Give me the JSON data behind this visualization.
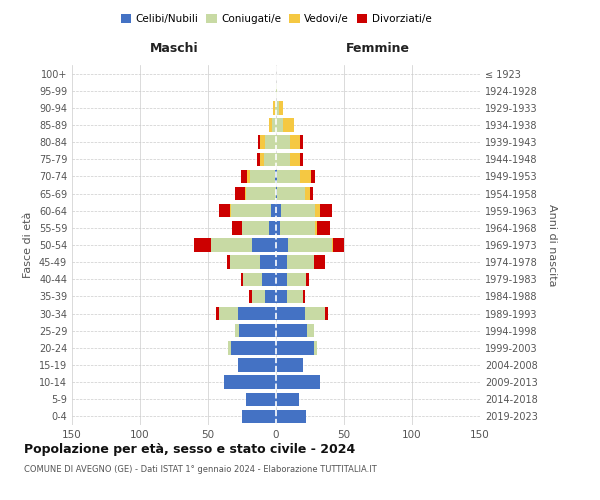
{
  "age_groups": [
    "0-4",
    "5-9",
    "10-14",
    "15-19",
    "20-24",
    "25-29",
    "30-34",
    "35-39",
    "40-44",
    "45-49",
    "50-54",
    "55-59",
    "60-64",
    "65-69",
    "70-74",
    "75-79",
    "80-84",
    "85-89",
    "90-94",
    "95-99",
    "100+"
  ],
  "birth_years": [
    "2019-2023",
    "2014-2018",
    "2009-2013",
    "2004-2008",
    "1999-2003",
    "1994-1998",
    "1989-1993",
    "1984-1988",
    "1979-1983",
    "1974-1978",
    "1969-1973",
    "1964-1968",
    "1959-1963",
    "1954-1958",
    "1949-1953",
    "1944-1948",
    "1939-1943",
    "1934-1938",
    "1929-1933",
    "1924-1928",
    "≤ 1923"
  ],
  "male": {
    "celibi": [
      25,
      22,
      38,
      28,
      33,
      27,
      28,
      8,
      10,
      12,
      18,
      5,
      4,
      0,
      1,
      0,
      0,
      0,
      0,
      0,
      0
    ],
    "coniugati": [
      0,
      0,
      0,
      0,
      2,
      3,
      14,
      10,
      14,
      22,
      30,
      20,
      29,
      22,
      18,
      9,
      8,
      3,
      1,
      0,
      0
    ],
    "vedovi": [
      0,
      0,
      0,
      0,
      0,
      0,
      0,
      0,
      0,
      0,
      0,
      0,
      1,
      1,
      2,
      3,
      4,
      2,
      1,
      0,
      0
    ],
    "divorziati": [
      0,
      0,
      0,
      0,
      0,
      0,
      2,
      2,
      2,
      2,
      12,
      7,
      8,
      7,
      5,
      2,
      1,
      0,
      0,
      0,
      0
    ]
  },
  "female": {
    "nubili": [
      22,
      17,
      32,
      20,
      28,
      23,
      21,
      8,
      8,
      8,
      9,
      3,
      4,
      1,
      1,
      0,
      0,
      0,
      0,
      0,
      0
    ],
    "coniugate": [
      0,
      0,
      0,
      0,
      2,
      5,
      15,
      12,
      14,
      20,
      32,
      26,
      25,
      20,
      17,
      10,
      10,
      5,
      2,
      1,
      0
    ],
    "vedove": [
      0,
      0,
      0,
      0,
      0,
      0,
      0,
      0,
      0,
      0,
      1,
      1,
      3,
      4,
      8,
      8,
      8,
      8,
      3,
      0,
      0
    ],
    "divorziate": [
      0,
      0,
      0,
      0,
      0,
      0,
      2,
      1,
      2,
      8,
      8,
      10,
      9,
      2,
      3,
      2,
      2,
      0,
      0,
      0,
      0
    ]
  },
  "colors": {
    "celibi": "#4472C4",
    "coniugati": "#c8daa4",
    "vedovi": "#F5C842",
    "divorziati": "#CC0000"
  },
  "title": "Popolazione per età, sesso e stato civile - 2024",
  "subtitle": "COMUNE DI AVEGNO (GE) - Dati ISTAT 1° gennaio 2024 - Elaborazione TUTTITALIA.IT",
  "xlabel_left": "Maschi",
  "xlabel_right": "Femmine",
  "ylabel_left": "Fasce di età",
  "ylabel_right": "Anni di nascita",
  "xlim": 150,
  "legend_labels": [
    "Celibi/Nubili",
    "Coniugati/e",
    "Vedovi/e",
    "Divorziati/e"
  ],
  "background_color": "#ffffff",
  "grid_color": "#cccccc"
}
